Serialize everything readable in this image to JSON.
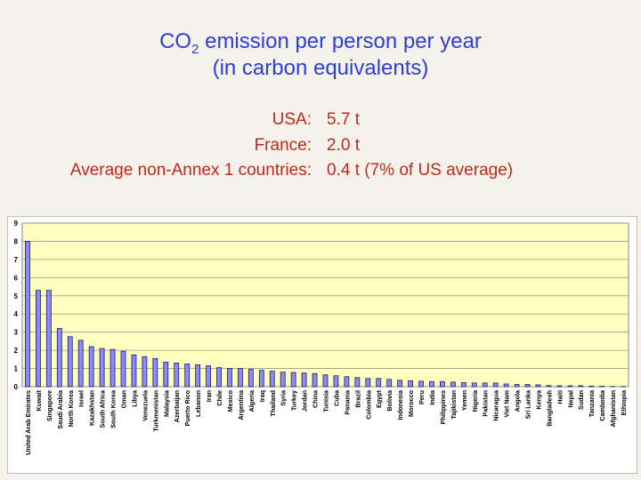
{
  "title": {
    "main": "CO",
    "sub": "2",
    "rest": " emission per person per year",
    "line2": "(in carbon equivalents)"
  },
  "stats": [
    {
      "label": "USA:",
      "value": "5.7 t"
    },
    {
      "label": "France:",
      "value": "2.0 t"
    },
    {
      "label": "Average non-Annex 1 countries:",
      "value": "0.4 t (7% of US average)"
    }
  ],
  "colors": {
    "title": "#2b3fd6",
    "stats": "#c0281a",
    "plot_background": "#ffffc0",
    "bar_fill": "#8c8cf0",
    "bar_stroke": "#1c1c6e"
  },
  "chart_data": {
    "type": "bar",
    "ylim": [
      0,
      9
    ],
    "yticks": [
      0,
      1,
      2,
      3,
      4,
      5,
      6,
      7,
      8,
      9
    ],
    "grid": true,
    "categories": [
      "United Arab Emirates",
      "Kuwait",
      "Singapore",
      "Saudi Arabia",
      "North Korea",
      "Israel",
      "Kazakhstan",
      "South Africa",
      "South Korea",
      "Oman",
      "Libya",
      "Venezuela",
      "Turkmenistan",
      "Malaysia",
      "Azerbaijan",
      "Puerto Rico",
      "Lebanon",
      "Iran",
      "Chile",
      "Mexico",
      "Argentina",
      "Algeria",
      "Iraq",
      "Thailand",
      "Syria",
      "Turkey",
      "Jordan",
      "China",
      "Tunisia",
      "Cuba",
      "Panama",
      "Brazil",
      "Colombia",
      "Egypt",
      "Bolivia",
      "Indonesia",
      "Morocco",
      "Peru",
      "India",
      "Philippines",
      "Tajikistan",
      "Yemen",
      "Nigeria",
      "Pakistan",
      "Nicaragua",
      "Viet Nam",
      "Angola",
      "Sri Lanka",
      "Kenya",
      "Bangladesh",
      "Haiti",
      "Nepal",
      "Sudan",
      "Tanzania",
      "Cambodia",
      "Afghanistan",
      "Ethiopia"
    ],
    "values": [
      8.0,
      5.3,
      5.3,
      3.2,
      2.75,
      2.55,
      2.2,
      2.1,
      2.05,
      1.95,
      1.75,
      1.65,
      1.55,
      1.35,
      1.3,
      1.25,
      1.2,
      1.15,
      1.05,
      1.0,
      1.0,
      0.95,
      0.9,
      0.85,
      0.8,
      0.78,
      0.75,
      0.72,
      0.65,
      0.6,
      0.55,
      0.5,
      0.45,
      0.45,
      0.4,
      0.35,
      0.32,
      0.3,
      0.28,
      0.28,
      0.25,
      0.22,
      0.2,
      0.2,
      0.2,
      0.15,
      0.12,
      0.12,
      0.1,
      0.06,
      0.05,
      0.05,
      0.05,
      0.03,
      0.02,
      0.01,
      0.01
    ]
  }
}
